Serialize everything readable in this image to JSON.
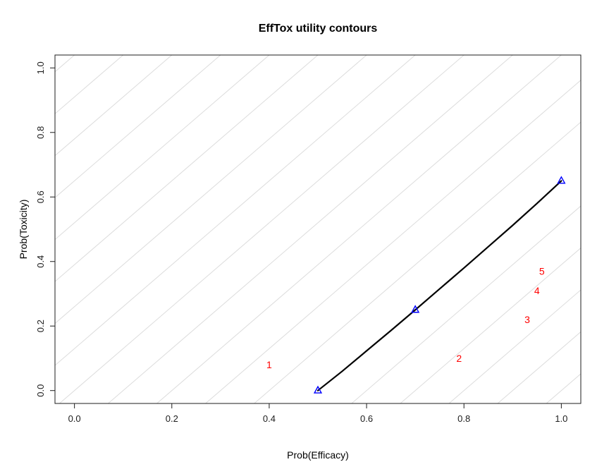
{
  "figure": {
    "title": "EffTox utility contours",
    "x_axis_label": "Prob(Efficacy)",
    "y_axis_label": "Prob(Toxicity)"
  },
  "chart_data": {
    "type": "line",
    "title": "EffTox utility contours",
    "xlabel": "Prob(Efficacy)",
    "ylabel": "Prob(Toxicity)",
    "xlim": [
      0,
      1
    ],
    "ylim": [
      0,
      1
    ],
    "axis_expansion": 0.04,
    "grid": false,
    "x_tick_values": [
      0.0,
      0.2,
      0.4,
      0.6,
      0.8,
      1.0
    ],
    "y_tick_values": [
      0.0,
      0.2,
      0.4,
      0.6,
      0.8,
      1.0
    ],
    "x_tick_labels": [
      "0.0",
      "0.2",
      "0.4",
      "0.6",
      "0.8",
      "1.0"
    ],
    "y_tick_labels": [
      "0.0",
      "0.2",
      "0.4",
      "0.6",
      "0.8",
      "1.0"
    ],
    "background_utility_contours": {
      "color": "#dcdcdc",
      "slope": 1.3,
      "x_intercepts_at_tox0": [
        -0.8,
        -0.7,
        -0.6,
        -0.5,
        -0.4,
        -0.3,
        -0.2,
        -0.1,
        0.0,
        0.1,
        0.2,
        0.3,
        0.4,
        0.6,
        0.7,
        0.8,
        0.9,
        1.0
      ]
    },
    "neutral_utility_contour": {
      "color": "#000000",
      "line_width": 2.2,
      "points": [
        [
          0.5,
          0.0
        ],
        [
          0.55,
          0.06
        ],
        [
          0.6,
          0.123
        ],
        [
          0.65,
          0.186
        ],
        [
          0.7,
          0.25
        ],
        [
          0.75,
          0.315
        ],
        [
          0.8,
          0.38
        ],
        [
          0.85,
          0.446
        ],
        [
          0.9,
          0.512
        ],
        [
          0.95,
          0.58
        ],
        [
          1.0,
          0.65
        ]
      ]
    },
    "hurdle_points": {
      "marker": "open-triangle",
      "color": "#0000ff",
      "points": [
        {
          "prob_eff": 0.5,
          "prob_tox": 0.0
        },
        {
          "prob_eff": 0.7,
          "prob_tox": 0.25
        },
        {
          "prob_eff": 1.0,
          "prob_tox": 0.65
        }
      ]
    },
    "dose_labels": {
      "color": "#ff0000",
      "points": [
        {
          "label": "1",
          "prob_eff": 0.4,
          "prob_tox": 0.08
        },
        {
          "label": "2",
          "prob_eff": 0.79,
          "prob_tox": 0.1
        },
        {
          "label": "3",
          "prob_eff": 0.93,
          "prob_tox": 0.22
        },
        {
          "label": "4",
          "prob_eff": 0.95,
          "prob_tox": 0.31
        },
        {
          "label": "5",
          "prob_eff": 0.96,
          "prob_tox": 0.37
        }
      ]
    }
  }
}
